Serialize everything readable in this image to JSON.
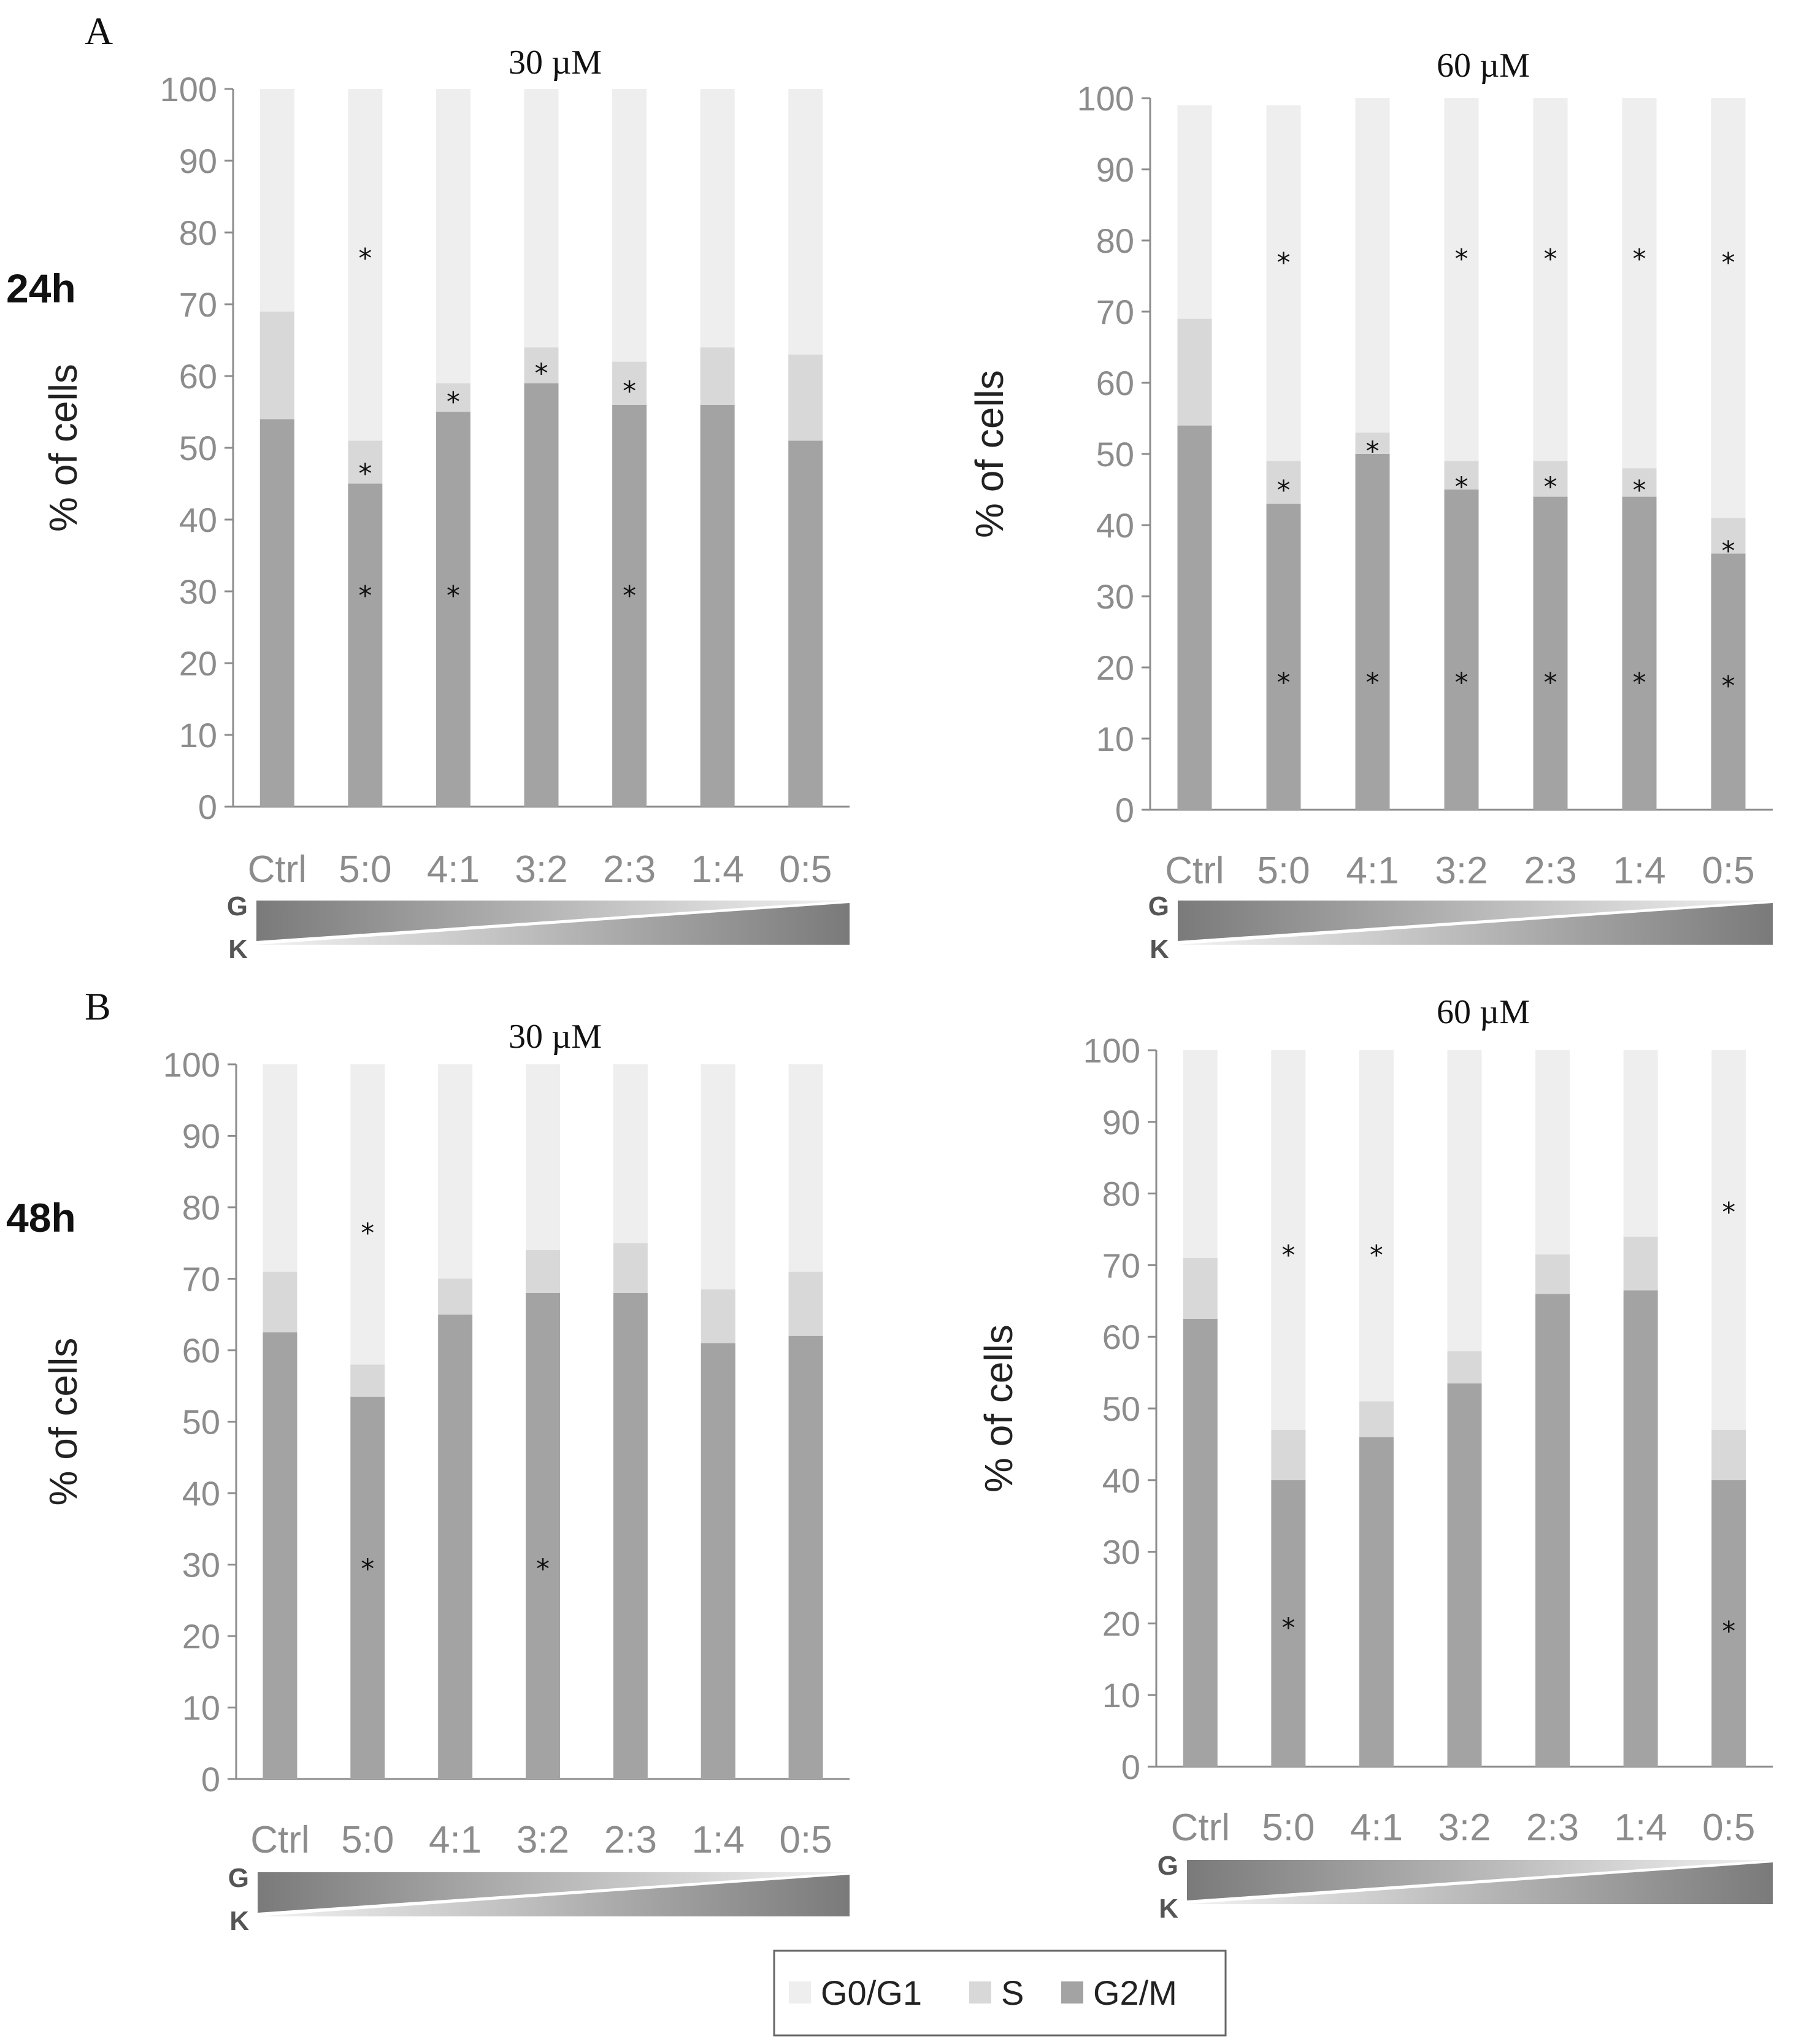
{
  "panel_letters": {
    "a": "A",
    "b": "B"
  },
  "row_labels": {
    "top": "24h",
    "bottom": "48h"
  },
  "gradient_labels": {
    "g": "G",
    "k": "K"
  },
  "colors": {
    "g0g1": "#eeeeee",
    "s": "#d8d8d8",
    "g2m": "#a3a3a3",
    "axis": "#8c8c8c"
  },
  "legend": [
    {
      "label": "G0/G1",
      "color": "#eeeeee"
    },
    {
      "label": "S",
      "color": "#d8d8d8"
    },
    {
      "label": "G2/M",
      "color": "#a3a3a3"
    }
  ],
  "chart_data": [
    {
      "type": "bar",
      "stacked": true,
      "title": "30 µM",
      "ylabel": "% of cells",
      "ylim": [
        0,
        100
      ],
      "yticks": [
        0,
        10,
        20,
        30,
        40,
        50,
        60,
        70,
        80,
        90,
        100
      ],
      "categories": [
        "Ctrl",
        "5:0",
        "4:1",
        "3:2",
        "2:3",
        "1:4",
        "0:5"
      ],
      "series": [
        {
          "name": "G2/M",
          "values": [
            54,
            45,
            55,
            59,
            56,
            56,
            51
          ]
        },
        {
          "name": "S",
          "values": [
            15,
            6,
            4,
            5,
            6,
            8,
            12
          ]
        },
        {
          "name": "G0/G1",
          "values": [
            31,
            49,
            41,
            36,
            38,
            36,
            37
          ]
        }
      ],
      "annotations": [
        {
          "category": "5:0",
          "y": 77,
          "text": "*"
        },
        {
          "category": "5:0",
          "y": 47,
          "text": "*"
        },
        {
          "category": "5:0",
          "y": 30,
          "text": "*"
        },
        {
          "category": "4:1",
          "y": 57,
          "text": "*"
        },
        {
          "category": "4:1",
          "y": 30,
          "text": "*"
        },
        {
          "category": "3:2",
          "y": 61,
          "text": "*"
        },
        {
          "category": "2:3",
          "y": 58.5,
          "text": "*"
        },
        {
          "category": "2:3",
          "y": 30,
          "text": "*"
        }
      ]
    },
    {
      "type": "bar",
      "stacked": true,
      "title": "60 µM",
      "ylabel": "% of cells",
      "ylim": [
        0,
        100
      ],
      "yticks": [
        0,
        10,
        20,
        30,
        40,
        50,
        60,
        70,
        80,
        90,
        100
      ],
      "categories": [
        "Ctrl",
        "5:0",
        "4:1",
        "3:2",
        "2:3",
        "1:4",
        "0:5"
      ],
      "series": [
        {
          "name": "G2/M",
          "values": [
            54,
            43,
            50,
            45,
            44,
            44,
            36
          ]
        },
        {
          "name": "S",
          "values": [
            15,
            6,
            3,
            4,
            5,
            4,
            5
          ]
        },
        {
          "name": "G0/G1",
          "values": [
            30,
            50,
            47,
            51,
            51,
            52,
            59
          ]
        }
      ],
      "annotations": [
        {
          "category": "5:0",
          "y": 77.5,
          "text": "*"
        },
        {
          "category": "5:0",
          "y": 45.5,
          "text": "*"
        },
        {
          "category": "5:0",
          "y": 18.5,
          "text": "*"
        },
        {
          "category": "4:1",
          "y": 51,
          "text": "*"
        },
        {
          "category": "4:1",
          "y": 18.5,
          "text": "*"
        },
        {
          "category": "3:2",
          "y": 78,
          "text": "*"
        },
        {
          "category": "3:2",
          "y": 46,
          "text": "*"
        },
        {
          "category": "3:2",
          "y": 18.5,
          "text": "*"
        },
        {
          "category": "2:3",
          "y": 78,
          "text": "*"
        },
        {
          "category": "2:3",
          "y": 46,
          "text": "*"
        },
        {
          "category": "2:3",
          "y": 18.5,
          "text": "*"
        },
        {
          "category": "1:4",
          "y": 78,
          "text": "*"
        },
        {
          "category": "1:4",
          "y": 45.5,
          "text": "*"
        },
        {
          "category": "1:4",
          "y": 18.5,
          "text": "*"
        },
        {
          "category": "0:5",
          "y": 77.5,
          "text": "*"
        },
        {
          "category": "0:5",
          "y": 37,
          "text": "*"
        },
        {
          "category": "0:5",
          "y": 18,
          "text": "*"
        }
      ]
    },
    {
      "type": "bar",
      "stacked": true,
      "title": "30 µM",
      "ylabel": "% of cells",
      "ylim": [
        0,
        100
      ],
      "yticks": [
        0,
        10,
        20,
        30,
        40,
        50,
        60,
        70,
        80,
        90,
        100
      ],
      "categories": [
        "Ctrl",
        "5:0",
        "4:1",
        "3:2",
        "2:3",
        "1:4",
        "0:5"
      ],
      "series": [
        {
          "name": "G2/M",
          "values": [
            62.5,
            53.5,
            65,
            68,
            68,
            61,
            62
          ]
        },
        {
          "name": "S",
          "values": [
            8.5,
            4.5,
            5,
            6,
            7,
            7.5,
            9
          ]
        },
        {
          "name": "G0/G1",
          "values": [
            29,
            42,
            30,
            26,
            25,
            31.5,
            29
          ]
        }
      ],
      "annotations": [
        {
          "category": "5:0",
          "y": 77,
          "text": "*"
        },
        {
          "category": "5:0",
          "y": 30,
          "text": "*"
        },
        {
          "category": "3:2",
          "y": 30,
          "text": "*"
        }
      ]
    },
    {
      "type": "bar",
      "stacked": true,
      "title": "60 µM",
      "ylabel": "% of cells",
      "ylim": [
        0,
        100
      ],
      "yticks": [
        0,
        10,
        20,
        30,
        40,
        50,
        60,
        70,
        80,
        90,
        100
      ],
      "categories": [
        "Ctrl",
        "5:0",
        "4:1",
        "3:2",
        "2:3",
        "1:4",
        "0:5"
      ],
      "series": [
        {
          "name": "G2/M",
          "values": [
            62.5,
            40,
            46,
            53.5,
            66,
            66.5,
            40
          ]
        },
        {
          "name": "S",
          "values": [
            8.5,
            7,
            5,
            4.5,
            5.5,
            7.5,
            7
          ]
        },
        {
          "name": "G0/G1",
          "values": [
            29,
            53,
            49,
            42,
            28.5,
            26,
            53
          ]
        }
      ],
      "annotations": [
        {
          "category": "5:0",
          "y": 72,
          "text": "*"
        },
        {
          "category": "5:0",
          "y": 20,
          "text": "*"
        },
        {
          "category": "4:1",
          "y": 72,
          "text": "*"
        },
        {
          "category": "0:5",
          "y": 78,
          "text": "*"
        },
        {
          "category": "0:5",
          "y": 19.5,
          "text": "*"
        }
      ]
    }
  ]
}
